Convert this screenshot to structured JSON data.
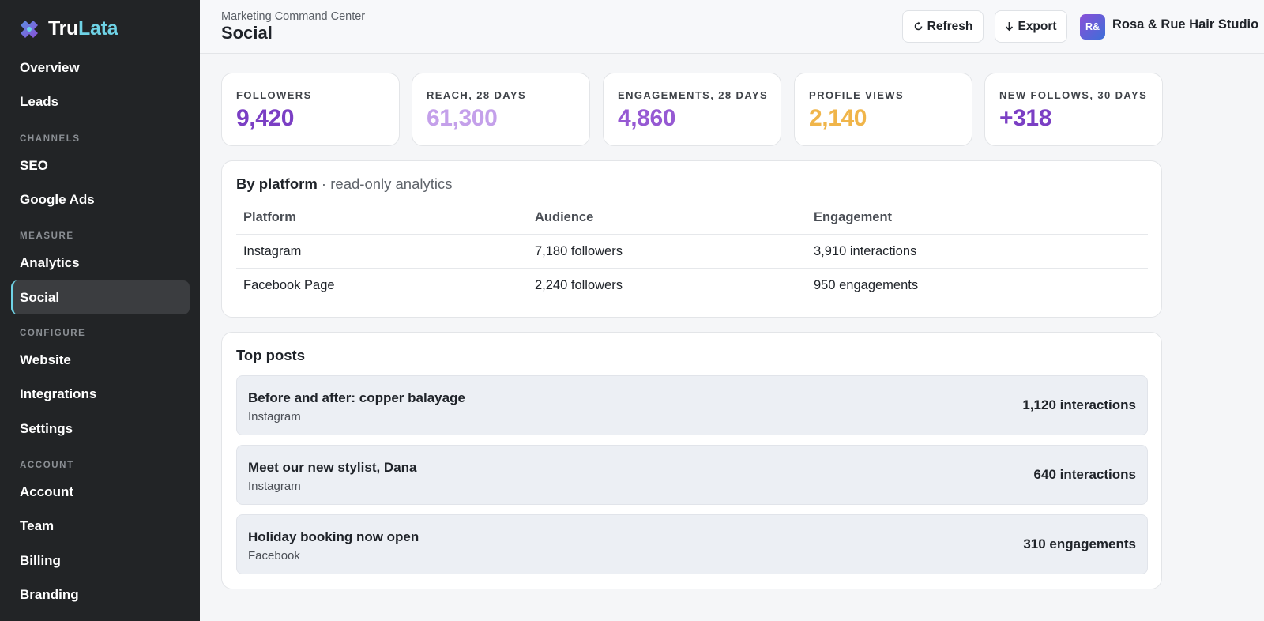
{
  "brand": {
    "part1": "Tru",
    "part2": "Lata"
  },
  "nav": {
    "overview": "Overview",
    "leads": "Leads",
    "section_channels": "CHANNELS",
    "seo": "SEO",
    "google_ads": "Google Ads",
    "section_measure": "MEASURE",
    "analytics": "Analytics",
    "social": "Social",
    "section_configure": "CONFIGURE",
    "website": "Website",
    "integrations": "Integrations",
    "settings": "Settings",
    "section_account": "ACCOUNT",
    "account": "Account",
    "team": "Team",
    "billing": "Billing",
    "branding": "Branding",
    "active_item": "Social"
  },
  "header": {
    "subtitle": "Marketing Command Center",
    "title": "Social",
    "refresh_label": "Refresh",
    "export_label": "Export",
    "avatar_initials": "R&",
    "studio_name": "Rosa & Rue Hair Studio"
  },
  "kpis": [
    {
      "label": "FOLLOWERS",
      "value": "9,420",
      "color": "#7b3fc4"
    },
    {
      "label": "REACH, 28 DAYS",
      "value": "61,300",
      "color": "#c4a0ea"
    },
    {
      "label": "ENGAGEMENTS, 28 DAYS",
      "value": "4,860",
      "color": "#9659d3"
    },
    {
      "label": "PROFILE VIEWS",
      "value": "2,140",
      "color": "#f0b54a"
    },
    {
      "label": "NEW FOLLOWS, 30 DAYS",
      "value": "+318",
      "color": "#7b3fc4"
    }
  ],
  "platform_panel": {
    "title": "By platform",
    "separator": " · ",
    "subtitle": "read-only analytics",
    "columns": [
      "Platform",
      "Audience",
      "Engagement"
    ],
    "rows": [
      [
        "Instagram",
        "7,180 followers",
        "3,910 interactions"
      ],
      [
        "Facebook Page",
        "2,240 followers",
        "950 engagements"
      ]
    ]
  },
  "posts_panel": {
    "title": "Top posts",
    "posts": [
      {
        "title": "Before and after: copper balayage",
        "source": "Instagram",
        "metric": "1,120 interactions"
      },
      {
        "title": "Meet our new stylist, Dana",
        "source": "Instagram",
        "metric": "640 interactions"
      },
      {
        "title": "Holiday booking now open",
        "source": "Facebook",
        "metric": "310 engagements"
      }
    ]
  },
  "colors": {
    "sidebar_bg": "#222426",
    "accent": "#6fd3e6",
    "brand_purple": "#7b3fc4"
  },
  "icons": {
    "refresh": "refresh-icon",
    "export": "download-arrow-icon",
    "logo": "trulata-logo-icon"
  }
}
